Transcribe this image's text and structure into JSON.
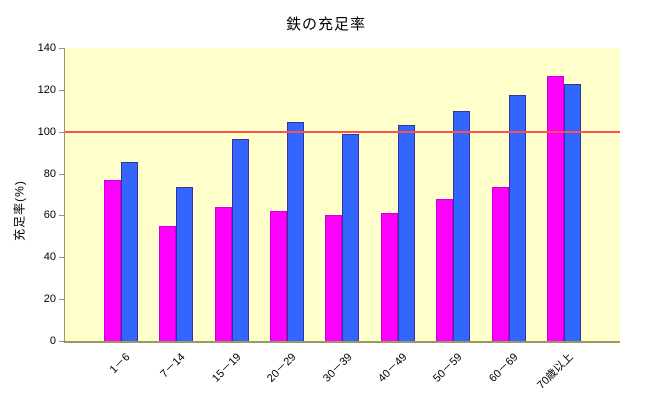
{
  "chart_data": {
    "type": "bar",
    "title": "鉄の充足率",
    "xlabel": "",
    "ylabel": "充足率(%)",
    "categories": [
      "1－6",
      "7－14",
      "15－19",
      "20－29",
      "30－39",
      "40－49",
      "50－59",
      "60－69",
      "70歳以上"
    ],
    "series": [
      {
        "name": "magenta",
        "color": "#FF00FF",
        "border_color": "#CC00CC",
        "values": [
          77,
          55,
          64,
          62,
          60,
          61,
          68,
          73.5,
          126.5
        ]
      },
      {
        "name": "blue",
        "color": "#3366FF",
        "border_color": "#333399",
        "values": [
          85.5,
          73.5,
          96.5,
          104.5,
          99,
          103,
          110,
          117.5,
          123
        ]
      }
    ],
    "ylim": [
      0,
      140
    ],
    "yticks": [
      0,
      20,
      40,
      60,
      80,
      100,
      120,
      140
    ],
    "refline": {
      "value": 100,
      "color": "#FF5050"
    },
    "grid": false,
    "legend": "none",
    "plot_bg_color": "#FFFFCC",
    "axis_color": "#999966",
    "text_color": "#000000"
  }
}
